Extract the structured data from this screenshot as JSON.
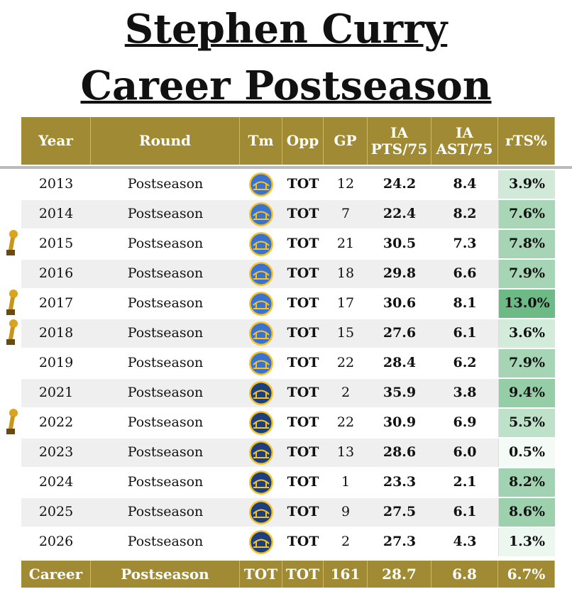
{
  "title": [
    "Stephen Curry",
    "Career Postseason"
  ],
  "table": {
    "header": [
      "Year",
      "Round",
      "Tm",
      "Opp",
      "GP",
      "IA\nPTS/75",
      "IA\nAST/75",
      "rTS%"
    ],
    "rows": [
      {
        "year": "2013",
        "round": "Postseason",
        "opp": "TOT",
        "gp": "12",
        "pts": "24.2",
        "ast": "8.4",
        "rts": "3.9%",
        "trophy": false,
        "logo_color": "#3a72d0"
      },
      {
        "year": "2014",
        "round": "Postseason",
        "opp": "TOT",
        "gp": "7",
        "pts": "22.4",
        "ast": "8.2",
        "rts": "7.6%",
        "trophy": false,
        "logo_color": "#3a72d0"
      },
      {
        "year": "2015",
        "round": "Postseason",
        "opp": "TOT",
        "gp": "21",
        "pts": "30.5",
        "ast": "7.3",
        "rts": "7.8%",
        "trophy": true,
        "logo_color": "#3a72d0"
      },
      {
        "year": "2016",
        "round": "Postseason",
        "opp": "TOT",
        "gp": "18",
        "pts": "29.8",
        "ast": "6.6",
        "rts": "7.9%",
        "trophy": false,
        "logo_color": "#3a72d0"
      },
      {
        "year": "2017",
        "round": "Postseason",
        "opp": "TOT",
        "gp": "17",
        "pts": "30.6",
        "ast": "8.1",
        "rts": "13.0%",
        "trophy": true,
        "logo_color": "#3a72d0"
      },
      {
        "year": "2018",
        "round": "Postseason",
        "opp": "TOT",
        "gp": "15",
        "pts": "27.6",
        "ast": "6.1",
        "rts": "3.6%",
        "trophy": true,
        "logo_color": "#3a72d0"
      },
      {
        "year": "2019",
        "round": "Postseason",
        "opp": "TOT",
        "gp": "22",
        "pts": "28.4",
        "ast": "6.2",
        "rts": "7.9%",
        "trophy": false,
        "logo_color": "#3a72d0"
      },
      {
        "year": "2021",
        "round": "Postseason",
        "opp": "TOT",
        "gp": "2",
        "pts": "35.9",
        "ast": "3.8",
        "rts": "9.4%",
        "trophy": false,
        "logo_color": "#1d3f7e"
      },
      {
        "year": "2022",
        "round": "Postseason",
        "opp": "TOT",
        "gp": "22",
        "pts": "30.9",
        "ast": "6.9",
        "rts": "5.5%",
        "trophy": true,
        "logo_color": "#1d3f7e"
      },
      {
        "year": "2023",
        "round": "Postseason",
        "opp": "TOT",
        "gp": "13",
        "pts": "28.6",
        "ast": "6.0",
        "rts": "0.5%",
        "trophy": false,
        "logo_color": "#1d3f7e"
      },
      {
        "year": "2024",
        "round": "Postseason",
        "opp": "TOT",
        "gp": "1",
        "pts": "23.3",
        "ast": "2.1",
        "rts": "8.2%",
        "trophy": false,
        "logo_color": "#1d3f7e"
      },
      {
        "year": "2025",
        "round": "Postseason",
        "opp": "TOT",
        "gp": "9",
        "pts": "27.5",
        "ast": "6.1",
        "rts": "8.6%",
        "trophy": false,
        "logo_color": "#1d3f7e"
      },
      {
        "year": "2026",
        "round": "Postseason",
        "opp": "TOT",
        "gp": "2",
        "pts": "27.3",
        "ast": "4.3",
        "rts": "1.3%",
        "trophy": false,
        "logo_color": "#1d3f7e"
      }
    ],
    "footer": [
      "Career",
      "Postseason",
      "TOT",
      "TOT",
      "161",
      "28.7",
      "6.8",
      "6.7%"
    ]
  }
}
